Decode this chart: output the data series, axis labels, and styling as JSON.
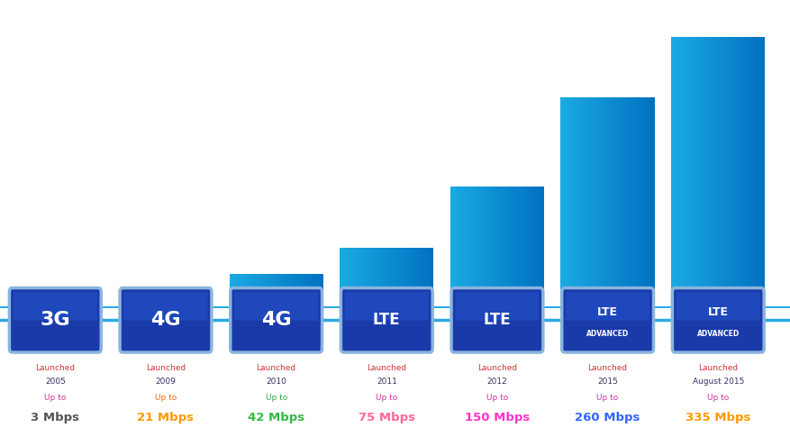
{
  "categories": [
    "3G",
    "4G",
    "4G",
    "LTE",
    "LTE",
    "LTE\nADVANCED",
    "LTE\nADVANCED"
  ],
  "years": [
    "Launched\n2005",
    "Launched\n2009",
    "Launched\n2010",
    "Launched\n2011",
    "Launched\n2012",
    "Launched\n2015",
    "Launched\nAugust 2015"
  ],
  "speeds": [
    "3 Mbps",
    "21 Mbps",
    "42 Mbps",
    "75 Mbps",
    "150 Mbps",
    "260 Mbps",
    "335 Mbps"
  ],
  "speed_values": [
    3,
    21,
    42,
    75,
    150,
    260,
    335
  ],
  "bar_color_left": "#1aaae2",
  "bar_color_right": "#0070c0",
  "bar_color_mid": "#1195d4",
  "badge_bg": "#1a3aaa",
  "badge_edge": "#8ab4dd",
  "timeline_color": "#29abe2",
  "launched_color": "#003366",
  "upto_colors": [
    "#cc3399",
    "#ff6600",
    "#33aa44",
    "#cc3399",
    "#cc3399",
    "#cc3399",
    "#cc3399"
  ],
  "speed_colors": [
    "#555555",
    "#ff9900",
    "#33bb44",
    "#ff6699",
    "#ff33cc",
    "#3366ff",
    "#ff9900"
  ],
  "background_color": "#FFFFFF",
  "bar_x": [
    0.5,
    1.5,
    2.5,
    3.5,
    4.5,
    5.5,
    6.5
  ],
  "bar_width": 0.85,
  "ylim_max": 380,
  "figsize": [
    8.77,
    4.75
  ],
  "dpi": 100
}
